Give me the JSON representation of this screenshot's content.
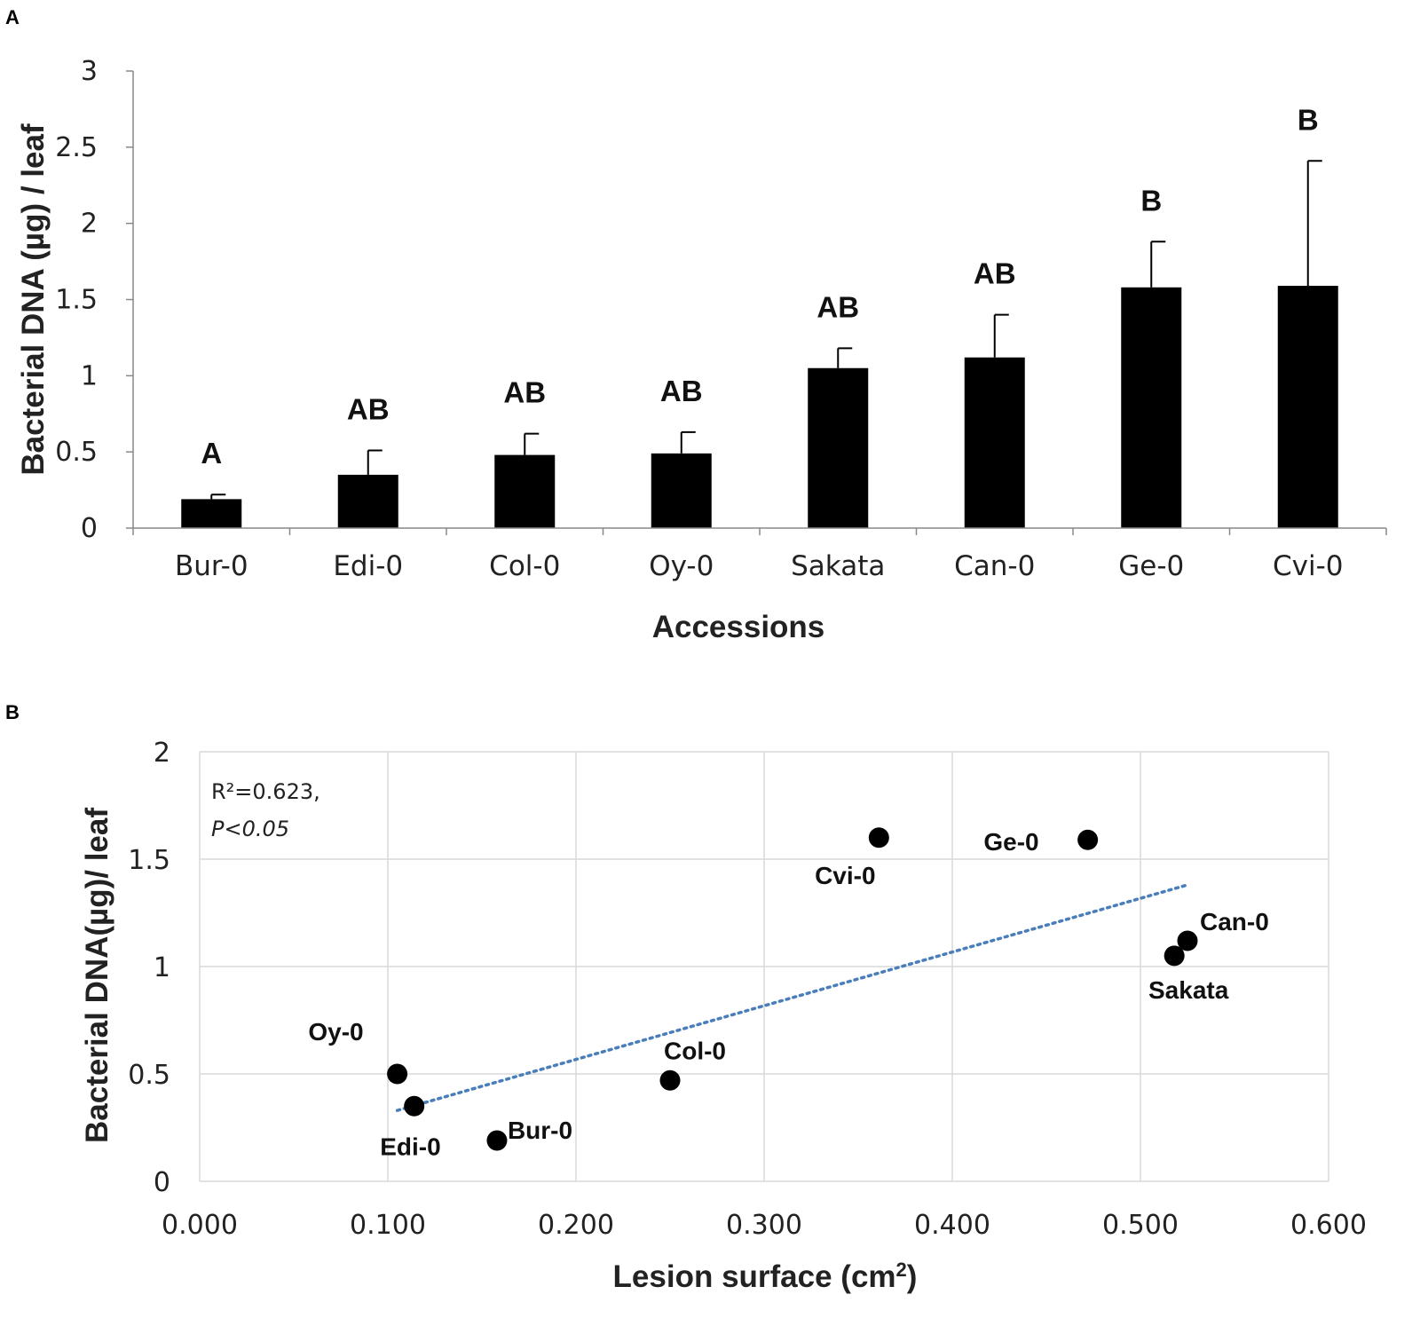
{
  "panel_a_label": "A",
  "panel_b_label": "B",
  "chart_data": [
    {
      "type": "bar",
      "panel": "A",
      "categories": [
        "Bur-0",
        "Edi-0",
        "Col-0",
        "Oy-0",
        "Sakata",
        "Can-0",
        "Ge-0",
        "Cvi-0"
      ],
      "values": [
        0.19,
        0.35,
        0.48,
        0.49,
        1.05,
        1.12,
        1.58,
        1.59
      ],
      "errors": [
        0.03,
        0.16,
        0.14,
        0.14,
        0.13,
        0.28,
        0.3,
        0.82
      ],
      "significance": [
        "A",
        "AB",
        "AB",
        "AB",
        "AB",
        "AB",
        "B",
        "B"
      ],
      "xlabel": "Accessions",
      "ylabel": "Bacterial DNA (µg) / leaf",
      "ylim": [
        0,
        3
      ],
      "yticks": [
        0,
        0.5,
        1,
        1.5,
        2,
        2.5,
        3
      ],
      "ytick_labels": [
        "0",
        "0.5",
        "1",
        "1.5",
        "2",
        "2.5",
        "3"
      ],
      "colors": {
        "bar": "#000000",
        "error": "#000000",
        "axis": "#888888"
      }
    },
    {
      "type": "scatter",
      "panel": "B",
      "points": [
        {
          "label": "Oy-0",
          "x": 0.105,
          "y": 0.5
        },
        {
          "label": "Edi-0",
          "x": 0.114,
          "y": 0.35
        },
        {
          "label": "Bur-0",
          "x": 0.158,
          "y": 0.19
        },
        {
          "label": "Col-0",
          "x": 0.25,
          "y": 0.47
        },
        {
          "label": "Cvi-0",
          "x": 0.361,
          "y": 1.6
        },
        {
          "label": "Ge-0",
          "x": 0.472,
          "y": 1.59
        },
        {
          "label": "Sakata",
          "x": 0.518,
          "y": 1.05
        },
        {
          "label": "Can-0",
          "x": 0.525,
          "y": 1.12
        }
      ],
      "trendline": {
        "x_start": 0.105,
        "y_start": 0.33,
        "x_end": 0.525,
        "y_end": 1.38,
        "color": "#4a7ebb",
        "style": "dotted"
      },
      "r_squared_text": "R²=0.623,",
      "p_value_text": "P<0.05",
      "xlabel": "Lesion surface (cm",
      "xlabel_sup": "2",
      "xlabel_close": ")",
      "ylabel": "Bacterial DNA(µg)/ leaf",
      "xlim": [
        0,
        0.6
      ],
      "ylim": [
        0,
        2
      ],
      "xticks": [
        0,
        0.1,
        0.2,
        0.3,
        0.4,
        0.5,
        0.6
      ],
      "xtick_labels": [
        "0.000",
        "0.100",
        "0.200",
        "0.300",
        "0.400",
        "0.500",
        "0.600"
      ],
      "yticks": [
        0,
        0.5,
        1,
        1.5,
        2
      ],
      "ytick_labels": [
        "0",
        "0.5",
        "1",
        "1.5",
        "2"
      ],
      "grid": true,
      "colors": {
        "point": "#000000",
        "grid": "#d9d9d9",
        "trend": "#4a7ebb"
      }
    }
  ]
}
